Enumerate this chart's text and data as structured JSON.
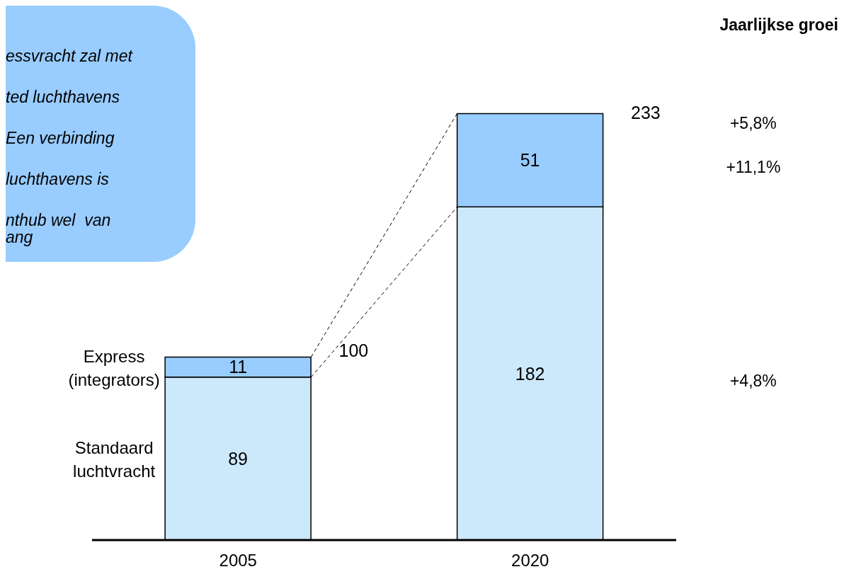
{
  "chart_data": {
    "type": "bar",
    "stacked": true,
    "categories": [
      "2005",
      "2020"
    ],
    "series": [
      {
        "name": "Standaard luchtvracht",
        "color": "#cce9fb",
        "values": [
          89,
          182
        ]
      },
      {
        "name": "Express (integrators)",
        "color": "#99ccff",
        "values": [
          11,
          51
        ]
      }
    ],
    "data_labels": true,
    "totals": [
      "100",
      "233"
    ],
    "annotations": [
      "essvracht zal met\nted luchthavens\nEen verbinding\nluchthavens is\nnthub wel  van\nang",
      "Jaarlijkse groei",
      "+5,8%",
      "+11,1%",
      "+4,8%"
    ]
  }
}
